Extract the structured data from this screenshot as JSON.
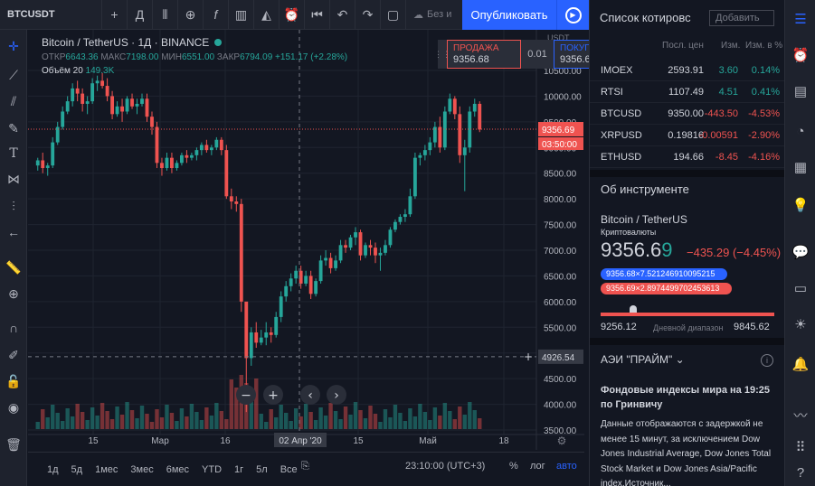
{
  "toolbar": {
    "symbol": "BTCUSDT",
    "interval_icon": "Д",
    "fx_label": "f",
    "no_changes_label": "Без и",
    "publish_label": "Опубликовать"
  },
  "legend": {
    "title": "Bitcoin / TetherUS · 1Д · BINANCE",
    "open_label": "ОТКР",
    "open": "6643.36",
    "high_label": "МАКС",
    "high": "7198.00",
    "low_label": "МИН",
    "low": "6551.00",
    "close_label": "ЗАКР",
    "close": "6794.09",
    "change": "+151.17 (+2.28%)",
    "volume_label": "Объём 20",
    "volume": "149.3K"
  },
  "trade": {
    "sell_label": "ПРОДАЖА",
    "sell_price": "9356.68",
    "spread": "0.01",
    "buy_label": "ПОКУПКА",
    "buy_price": "9356.69"
  },
  "chart": {
    "currency": "USDT",
    "price_ticks": [
      "10500.00",
      "10000.00",
      "9500.00",
      "9000.00",
      "8500.00",
      "8000.00",
      "7500.00",
      "7000.00",
      "6500.00",
      "6000.00",
      "5500.00",
      "5000.00",
      "4500.00",
      "4000.00",
      "3500.00"
    ],
    "last_price": "9356.69",
    "countdown": "03:50:00",
    "crosshair_price": "4926.54",
    "time_labels": [
      "15",
      "Мар",
      "16",
      "15",
      "Май",
      "18"
    ],
    "crosshair_date": "02 Апр '20"
  },
  "bottom": {
    "ranges": [
      "1д",
      "5д",
      "1мес",
      "3мес",
      "6мес",
      "YTD",
      "1г",
      "5л",
      "Все"
    ],
    "time": "23:10:00 (UTC+3)",
    "pct": "%",
    "log": "лог",
    "auto": "авто"
  },
  "watchlist": {
    "title": "Список котировс",
    "add_placeholder": "Добавить",
    "cols": {
      "last": "Посл. цен",
      "chg": "Изм.",
      "pct": "Изм. в %"
    },
    "rows": [
      {
        "sym": "IMOEX",
        "last": "2593.91",
        "chg": "3.60",
        "pct": "0.14%",
        "dir": "pos"
      },
      {
        "sym": "RTSI",
        "last": "1107.49",
        "chg": "4.51",
        "pct": "0.41%",
        "dir": "pos"
      },
      {
        "sym": "BTCUSD",
        "last": "9350.00",
        "chg": "-443.50",
        "pct": "-4.53%",
        "dir": "neg"
      },
      {
        "sym": "XRPUSD",
        "last": "0.19816",
        "chg": "-0.00591",
        "pct": "-2.90%",
        "dir": "neg"
      },
      {
        "sym": "ETHUSD",
        "last": "194.66",
        "chg": "-8.45",
        "pct": "-4.16%",
        "dir": "neg"
      }
    ]
  },
  "instrument": {
    "section": "Об инструменте",
    "name": "Bitcoin / TetherUS",
    "type": "Криптовалюты",
    "price_main": "9356.6",
    "price_last_digit": "9",
    "change": "−435.29 (−4.45%)",
    "bid": "9356.68×7.521246910095215",
    "ask": "9356.69×2.8974499702453613",
    "day_low": "9256.12",
    "day_range_label": "Дневной диапазон",
    "day_high": "9845.62"
  },
  "news": {
    "source": "АЭИ \"ПРАЙМ\"",
    "title": "Фондовые индексы мира на 19:25 по Гринвичу",
    "body": "Данные отображаются с задержкой не менее 15 минут, за исключением Dow Jones Industrial Average, Dow Jones Total Stock Market и Dow Jones Asia/Pacific index.Источник..."
  },
  "colors": {
    "up": "#26a69a",
    "down": "#ef5350",
    "accent": "#2962ff",
    "bg": "#131722"
  },
  "chart_data": {
    "type": "candlestick",
    "candles": [
      [
        8650,
        8800,
        8550,
        8750
      ],
      [
        8750,
        8900,
        8500,
        8600
      ],
      [
        8600,
        8700,
        8450,
        8650
      ],
      [
        8650,
        9200,
        8600,
        9100
      ],
      [
        9100,
        9500,
        9050,
        9400
      ],
      [
        9400,
        9800,
        9350,
        9700
      ],
      [
        9700,
        10000,
        9650,
        9900
      ],
      [
        9900,
        10250,
        9800,
        10150
      ],
      [
        10150,
        10300,
        9900,
        10050
      ],
      [
        10050,
        10150,
        9700,
        9850
      ],
      [
        9850,
        10000,
        9650,
        9900
      ],
      [
        9900,
        10350,
        9850,
        10250
      ],
      [
        10250,
        10400,
        10100,
        10300
      ],
      [
        10300,
        10450,
        10150,
        10200
      ],
      [
        10200,
        10350,
        9900,
        10000
      ],
      [
        10000,
        10100,
        9550,
        9650
      ],
      [
        9650,
        9900,
        9600,
        9800
      ],
      [
        9800,
        9950,
        9500,
        9700
      ],
      [
        9700,
        10000,
        9650,
        9950
      ],
      [
        9950,
        10050,
        9750,
        9800
      ],
      [
        9800,
        9950,
        9650,
        9850
      ],
      [
        9850,
        10050,
        9800,
        9950
      ],
      [
        9950,
        10050,
        9500,
        9600
      ],
      [
        9600,
        9700,
        9250,
        9400
      ],
      [
        9400,
        9500,
        8600,
        8700
      ],
      [
        8700,
        8800,
        8450,
        8600
      ],
      [
        8600,
        8900,
        8550,
        8800
      ],
      [
        8800,
        8900,
        8500,
        8600
      ],
      [
        8600,
        8750,
        8550,
        8700
      ],
      [
        8700,
        8900,
        8650,
        8850
      ],
      [
        8850,
        8950,
        8700,
        8800
      ],
      [
        8800,
        8900,
        8750,
        8850
      ],
      [
        8850,
        9000,
        8750,
        8950
      ],
      [
        8950,
        9100,
        8850,
        9050
      ],
      [
        9050,
        9150,
        8900,
        8950
      ],
      [
        8950,
        9050,
        8850,
        9000
      ],
      [
        9000,
        9200,
        8950,
        9150
      ],
      [
        9150,
        9200,
        8850,
        8950
      ],
      [
        8950,
        9050,
        8000,
        8050
      ],
      [
        8050,
        8200,
        7800,
        7950
      ],
      [
        7950,
        8050,
        7750,
        7900
      ],
      [
        7900,
        8000,
        5800,
        6000
      ],
      [
        6000,
        5950,
        3850,
        4900
      ],
      [
        4900,
        5500,
        4750,
        5400
      ],
      [
        5400,
        5600,
        5100,
        5200
      ],
      [
        5200,
        5450,
        5150,
        5300
      ],
      [
        5300,
        5600,
        5150,
        5400
      ],
      [
        5400,
        5500,
        5200,
        5350
      ],
      [
        5350,
        5800,
        5300,
        5700
      ],
      [
        5700,
        6200,
        5600,
        6100
      ],
      [
        6100,
        6400,
        6000,
        6300
      ],
      [
        6300,
        6550,
        6200,
        6450
      ],
      [
        6450,
        6700,
        6350,
        6600
      ],
      [
        6600,
        6700,
        6250,
        6350
      ],
      [
        6350,
        6600,
        6300,
        6500
      ],
      [
        6500,
        6600,
        6050,
        6150
      ],
      [
        6150,
        6450,
        6100,
        6400
      ],
      [
        6400,
        6900,
        6350,
        6800
      ],
      [
        6800,
        7000,
        6700,
        6850
      ],
      [
        6850,
        6950,
        6550,
        6650
      ],
      [
        6650,
        6900,
        6600,
        6800
      ],
      [
        6800,
        7200,
        6750,
        7100
      ],
      [
        7100,
        7200,
        6950,
        7050
      ],
      [
        7050,
        7300,
        7000,
        7250
      ],
      [
        7250,
        7450,
        7100,
        7350
      ],
      [
        7350,
        7400,
        6800,
        6900
      ],
      [
        6900,
        7150,
        6850,
        7100
      ],
      [
        7100,
        7200,
        6900,
        7050
      ],
      [
        7050,
        7150,
        6750,
        6900
      ],
      [
        6900,
        7050,
        6600,
        6950
      ],
      [
        6950,
        7200,
        6900,
        7100
      ],
      [
        7100,
        7450,
        7050,
        7400
      ],
      [
        7400,
        7600,
        7350,
        7550
      ],
      [
        7550,
        7700,
        7500,
        7650
      ],
      [
        7650,
        7800,
        7550,
        7700
      ],
      [
        7700,
        8200,
        7650,
        8050
      ],
      [
        8050,
        8900,
        8000,
        8800
      ],
      [
        8800,
        8900,
        8650,
        8850
      ],
      [
        8850,
        9050,
        8750,
        8950
      ],
      [
        8950,
        9200,
        8850,
        9100
      ],
      [
        9100,
        9500,
        9000,
        9400
      ],
      [
        9400,
        9600,
        8900,
        9000
      ],
      [
        9000,
        9800,
        8950,
        9700
      ],
      [
        9700,
        10050,
        9650,
        9950
      ],
      [
        9950,
        10000,
        9550,
        9650
      ],
      [
        9650,
        9800,
        8700,
        8850
      ],
      [
        8850,
        9150,
        8150,
        9000
      ],
      [
        9000,
        9800,
        8900,
        9700
      ],
      [
        9700,
        9950,
        9600,
        9850
      ],
      [
        9850,
        9900,
        9300,
        9350
      ]
    ],
    "ylim": [
      3500,
      10500
    ],
    "title": "Bitcoin / TetherUS · 1Д · BINANCE"
  }
}
